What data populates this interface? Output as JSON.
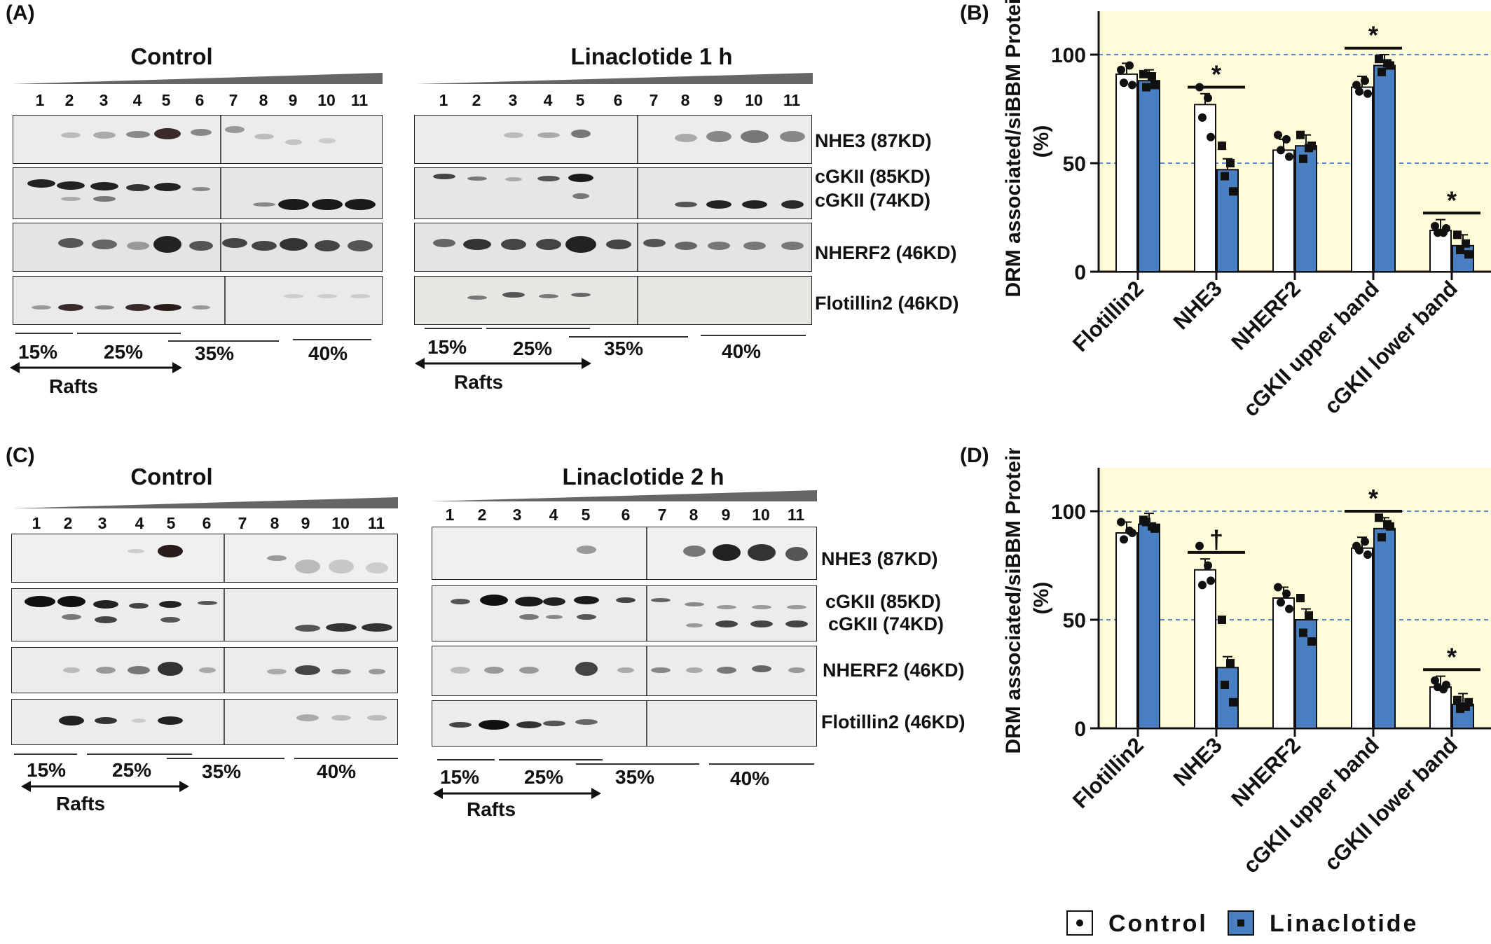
{
  "panels": {
    "A": {
      "letter": "(A)",
      "control_title": "Control",
      "treat_title": "Linaclotide 1 h",
      "lanes": [
        "1",
        "2",
        "3",
        "4",
        "5",
        "6",
        "7",
        "8",
        "9",
        "10",
        "11"
      ],
      "proteins": [
        "NHE3 (87KD)",
        "cGKII (85KD)",
        "cGKII (74KD)",
        "NHERF2 (46KD)",
        "Flotillin2 (46KD)"
      ],
      "percents": [
        "15%",
        "25%",
        "35%",
        "40%"
      ],
      "rafts": "Rafts"
    },
    "C": {
      "letter": "(C)",
      "control_title": "Control",
      "treat_title": "Linaclotide 2 h",
      "lanes": [
        "1",
        "2",
        "3",
        "4",
        "5",
        "6",
        "7",
        "8",
        "9",
        "10",
        "11"
      ],
      "proteins": [
        "NHE3 (87KD)",
        "cGKII (85KD)",
        "cGKII (74KD)",
        "NHERF2 (46KD)",
        "Flotillin2 (46KD)"
      ],
      "percents": [
        "15%",
        "25%",
        "35%",
        "40%"
      ],
      "rafts": "Rafts"
    },
    "B": {
      "letter": "(B)"
    },
    "D": {
      "letter": "(D)"
    }
  },
  "legend": {
    "control": "Control",
    "treat": "Linaclotide"
  },
  "colors": {
    "control_bar": "#ffffff",
    "treat_bar": "#4a7fc1",
    "plot_bg": "#fdfbd8",
    "ref_line": "#5b86c6"
  },
  "chart_data": [
    {
      "panel": "(B)",
      "type": "bar",
      "ylabel": "DRM associated/siBBM Protein (%)",
      "ylim": [
        0,
        120
      ],
      "yticks": [
        "0",
        "50",
        "100"
      ],
      "reference_lines": [
        50,
        100
      ],
      "categories": [
        "Flotillin2",
        "NHE3",
        "NHERF2",
        "cGKII upper band",
        "cGKII lower band"
      ],
      "series": [
        {
          "name": "Control",
          "values": [
            91,
            77,
            56,
            85,
            19
          ],
          "points": [
            [
              93,
              95,
              87,
              86
            ],
            [
              85,
              80,
              71,
              62
            ],
            [
              63,
              61,
              56,
              53
            ],
            [
              86,
              88,
              83,
              82
            ],
            [
              21,
              18,
              18,
              20
            ]
          ]
        },
        {
          "name": "Linaclotide",
          "values": [
            88,
            47,
            58,
            95,
            12
          ],
          "points": [
            [
              91,
              90,
              85,
              86
            ],
            [
              58,
              50,
              44,
              37
            ],
            [
              63,
              57,
              52,
              58
            ],
            [
              98,
              96,
              92,
              95
            ],
            [
              17,
              13,
              10,
              8
            ]
          ]
        }
      ],
      "significance": [
        "",
        "*",
        "",
        "*",
        "*"
      ]
    },
    {
      "panel": "(D)",
      "type": "bar",
      "ylabel": "DRM associated/siBBM Protein (%)",
      "ylim": [
        0,
        120
      ],
      "yticks": [
        "0",
        "50",
        "100"
      ],
      "reference_lines": [
        50,
        100
      ],
      "categories": [
        "Flotillin2",
        "NHE3",
        "NHERF2",
        "cGKII upper band",
        "cGKII lower band"
      ],
      "series": [
        {
          "name": "Control",
          "values": [
            90,
            73,
            60,
            83,
            19
          ],
          "points": [
            [
              95,
              91,
              87,
              90
            ],
            [
              84,
              75,
              66,
              68
            ],
            [
              65,
              62,
              58,
              55
            ],
            [
              84,
              86,
              82,
              80
            ],
            [
              22,
              18,
              19,
              20
            ]
          ]
        },
        {
          "name": "Linaclotide",
          "values": [
            94,
            28,
            50,
            92,
            11
          ],
          "points": [
            [
              96,
              93,
              95,
              92
            ],
            [
              50,
              30,
              20,
              12
            ],
            [
              60,
              52,
              44,
              40
            ],
            [
              97,
              94,
              88,
              93
            ],
            [
              13,
              10,
              9,
              12
            ]
          ]
        }
      ],
      "significance": [
        "",
        "†",
        "",
        "*",
        "*"
      ]
    }
  ]
}
